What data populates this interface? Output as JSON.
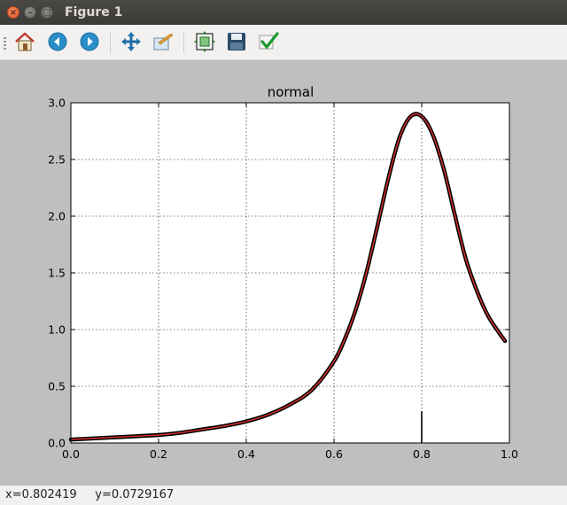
{
  "window": {
    "title": "Figure 1"
  },
  "toolbar": {
    "tools": [
      {
        "name": "home",
        "icon": "home-icon"
      },
      {
        "name": "back",
        "icon": "arrow-left-icon"
      },
      {
        "name": "forward",
        "icon": "arrow-right-icon"
      },
      {
        "name": "pan",
        "icon": "move-arrows-icon"
      },
      {
        "name": "zoom",
        "icon": "zoom-rect-icon"
      },
      {
        "name": "subplots",
        "icon": "subplots-icon"
      },
      {
        "name": "save",
        "icon": "floppy-disk-icon"
      },
      {
        "name": "edit",
        "icon": "checkmark-icon"
      }
    ]
  },
  "status": {
    "text": "x=0.802419     y=0.0729167"
  },
  "colors": {
    "curve_outline": "#000000",
    "curve_fill": "#e03030",
    "figure_bg": "#bfbfbf",
    "axes_bg": "#ffffff"
  },
  "chart_data": {
    "type": "line",
    "title": "normal",
    "xlabel": "",
    "ylabel": "",
    "xlim": [
      0.0,
      1.0
    ],
    "ylim": [
      0.0,
      3.0
    ],
    "xticks": [
      "0.0",
      "0.2",
      "0.4",
      "0.6",
      "0.8",
      "1.0"
    ],
    "yticks": [
      "0.0",
      "0.5",
      "1.0",
      "1.5",
      "2.0",
      "2.5",
      "3.0"
    ],
    "grid": true,
    "series": [
      {
        "x": [
          0.0,
          0.05,
          0.1,
          0.15,
          0.2,
          0.25,
          0.3,
          0.35,
          0.4,
          0.45,
          0.5,
          0.55,
          0.6,
          0.625,
          0.65,
          0.675,
          0.7,
          0.725,
          0.75,
          0.775,
          0.8,
          0.825,
          0.85,
          0.875,
          0.9,
          0.925,
          0.95,
          0.975,
          0.99
        ],
        "y": [
          0.03,
          0.04,
          0.05,
          0.06,
          0.07,
          0.09,
          0.12,
          0.15,
          0.19,
          0.25,
          0.34,
          0.47,
          0.72,
          0.92,
          1.18,
          1.52,
          1.93,
          2.35,
          2.7,
          2.88,
          2.88,
          2.72,
          2.42,
          2.02,
          1.63,
          1.35,
          1.13,
          0.98,
          0.9
        ]
      }
    ],
    "marker_line": {
      "x": 0.8,
      "y": [
        0.0,
        0.28
      ]
    }
  }
}
